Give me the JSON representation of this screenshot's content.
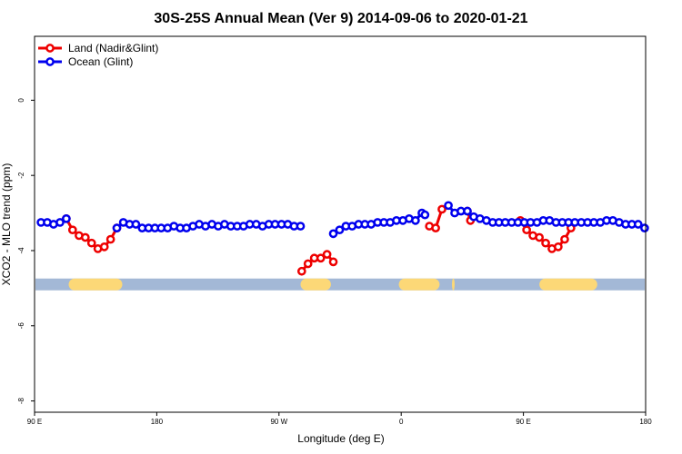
{
  "chart_data": {
    "type": "line",
    "title": "30S-25S Annual Mean (Ver 9)   2014-09-06 to 2020-01-21",
    "xlabel": "Longitude (deg E)",
    "ylabel": "XCO2 - MLO trend (ppm)",
    "xlim": [
      90,
      450
    ],
    "ylim": [
      -8.3,
      1.7
    ],
    "grid": false,
    "legend_position": "top-left",
    "x_ticks": [
      {
        "value": 90,
        "label": "90 E"
      },
      {
        "value": 162,
        "label": "180"
      },
      {
        "value": 234,
        "label": "90 W"
      },
      {
        "value": 306,
        "label": "0"
      },
      {
        "value": 378,
        "label": "90 E"
      },
      {
        "value": 450,
        "label": "180"
      }
    ],
    "y_ticks": [
      {
        "value": 0,
        "label": "0"
      },
      {
        "value": -2,
        "label": "-2"
      },
      {
        "value": -4,
        "label": "-4"
      },
      {
        "value": -6,
        "label": "-6"
      },
      {
        "value": -8,
        "label": "-8"
      }
    ],
    "series": [
      {
        "name": "Land (Nadir&Glint)",
        "color": "#ee0000",
        "points": [
          [
            108.7,
            -3.15
          ],
          [
            112.4,
            -3.45
          ],
          [
            116.2,
            -3.6
          ],
          [
            119.9,
            -3.65
          ],
          [
            123.6,
            -3.8
          ],
          [
            127.3,
            -3.95
          ],
          [
            131.1,
            -3.9
          ],
          [
            134.8,
            -3.7
          ],
          [
            138.5,
            -3.4
          ],
          null,
          [
            247.4,
            -4.55
          ],
          [
            251.1,
            -4.35
          ],
          [
            254.8,
            -4.2
          ],
          [
            258.6,
            -4.2
          ],
          [
            262.3,
            -4.1
          ],
          [
            266.0,
            -4.3
          ],
          null,
          [
            322.6,
            -3.35
          ],
          [
            326.3,
            -3.4
          ],
          [
            330.0,
            -2.9
          ],
          null,
          [
            345.0,
            -2.95
          ],
          [
            346.8,
            -3.2
          ],
          null,
          [
            376.2,
            -3.2
          ],
          [
            379.9,
            -3.45
          ],
          [
            383.6,
            -3.6
          ],
          [
            387.4,
            -3.65
          ],
          [
            391.1,
            -3.8
          ],
          [
            394.8,
            -3.95
          ],
          [
            398.5,
            -3.9
          ],
          [
            402.3,
            -3.7
          ],
          [
            406.0,
            -3.4
          ]
        ]
      },
      {
        "name": "Ocean (Glint)",
        "color": "#0000ee",
        "points": [
          [
            93.8,
            -3.25
          ],
          [
            97.5,
            -3.25
          ],
          [
            101.2,
            -3.3
          ],
          [
            105.0,
            -3.25
          ],
          [
            108.7,
            -3.15
          ],
          null,
          [
            138.5,
            -3.4
          ],
          [
            142.3,
            -3.25
          ],
          [
            146.0,
            -3.3
          ],
          [
            149.7,
            -3.3
          ],
          [
            153.4,
            -3.4
          ],
          [
            157.2,
            -3.4
          ],
          [
            160.9,
            -3.4
          ],
          [
            164.6,
            -3.4
          ],
          [
            168.4,
            -3.4
          ],
          [
            172.1,
            -3.35
          ],
          [
            175.8,
            -3.4
          ],
          [
            179.5,
            -3.4
          ],
          [
            183.3,
            -3.35
          ],
          [
            187.0,
            -3.3
          ],
          [
            190.7,
            -3.35
          ],
          [
            194.5,
            -3.3
          ],
          [
            198.2,
            -3.35
          ],
          [
            201.9,
            -3.3
          ],
          [
            205.6,
            -3.35
          ],
          [
            209.4,
            -3.35
          ],
          [
            213.1,
            -3.35
          ],
          [
            216.8,
            -3.3
          ],
          [
            220.6,
            -3.3
          ],
          [
            224.3,
            -3.35
          ],
          [
            228.0,
            -3.3
          ],
          [
            231.7,
            -3.3
          ],
          [
            235.5,
            -3.3
          ],
          [
            239.2,
            -3.3
          ],
          [
            242.9,
            -3.35
          ],
          [
            246.7,
            -3.35
          ],
          null,
          [
            266.0,
            -3.55
          ],
          [
            269.7,
            -3.45
          ],
          [
            273.4,
            -3.35
          ],
          [
            277.1,
            -3.35
          ],
          [
            280.9,
            -3.3
          ],
          [
            284.6,
            -3.3
          ],
          [
            288.3,
            -3.3
          ],
          [
            292.1,
            -3.25
          ],
          [
            295.8,
            -3.25
          ],
          [
            299.5,
            -3.25
          ],
          [
            303.2,
            -3.2
          ],
          [
            307.0,
            -3.2
          ],
          [
            310.7,
            -3.15
          ],
          [
            314.4,
            -3.2
          ],
          [
            318.2,
            -3.0
          ],
          [
            320.0,
            -3.05
          ],
          null,
          [
            333.8,
            -2.8
          ],
          [
            337.5,
            -3.0
          ],
          [
            341.2,
            -2.95
          ],
          [
            345.0,
            -2.95
          ],
          [
            348.7,
            -3.1
          ],
          [
            352.4,
            -3.15
          ],
          [
            356.2,
            -3.2
          ],
          [
            359.9,
            -3.25
          ],
          [
            363.6,
            -3.25
          ],
          [
            367.3,
            -3.25
          ],
          [
            371.1,
            -3.25
          ],
          [
            374.8,
            -3.25
          ],
          [
            378.5,
            -3.25
          ],
          [
            382.2,
            -3.25
          ],
          [
            386.0,
            -3.25
          ],
          [
            389.7,
            -3.2
          ],
          [
            393.4,
            -3.2
          ],
          [
            397.2,
            -3.25
          ],
          [
            400.9,
            -3.25
          ],
          [
            404.6,
            -3.25
          ],
          [
            408.3,
            -3.25
          ],
          [
            412.1,
            -3.25
          ],
          [
            415.8,
            -3.25
          ],
          [
            419.5,
            -3.25
          ],
          [
            423.3,
            -3.25
          ],
          [
            427.0,
            -3.2
          ],
          [
            430.7,
            -3.2
          ],
          [
            434.4,
            -3.25
          ],
          [
            438.2,
            -3.3
          ],
          [
            441.9,
            -3.3
          ],
          [
            445.6,
            -3.3
          ],
          [
            449.4,
            -3.4
          ]
        ]
      }
    ],
    "reference_band": {
      "y": -4.9,
      "color": "#a3b8d6",
      "land_color": "#fcd877",
      "land_ranges": [
        [
          110.1,
          141.7
        ],
        [
          246.7,
          264.6
        ],
        [
          304.6,
          328.6
        ],
        [
          335.9,
          337.5
        ],
        [
          387.4,
          421.5
        ]
      ]
    }
  }
}
